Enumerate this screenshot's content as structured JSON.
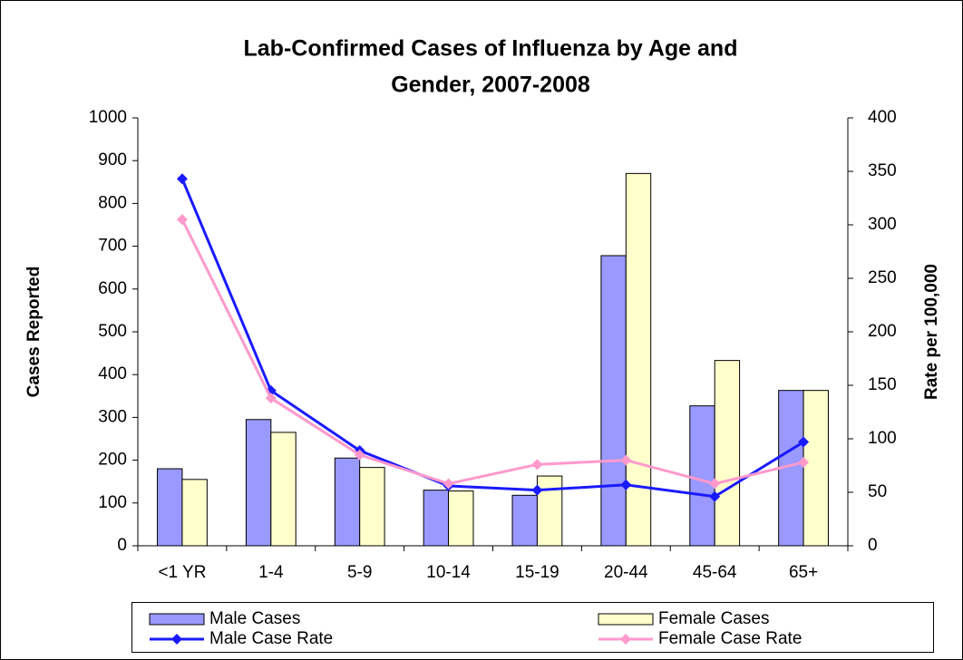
{
  "chart_data": {
    "type": "bar-line",
    "title": [
      "Lab-Confirmed Cases of Influenza by Age and",
      "Gender, 2007-2008"
    ],
    "y_label": "Cases Reported",
    "y2_label": "Rate per 100,000",
    "categories": [
      "<1 YR",
      "1-4",
      "5-9",
      "10-14",
      "15-19",
      "20-44",
      "45-64",
      "65+"
    ],
    "series": [
      {
        "name": "Male Cases",
        "type": "bar",
        "color": "#9999ff",
        "values": [
          180,
          295,
          205,
          130,
          118,
          678,
          327,
          363
        ]
      },
      {
        "name": "Female Cases",
        "type": "bar",
        "color": "#ffffcc",
        "values": [
          155,
          265,
          183,
          128,
          163,
          870,
          433,
          363
        ]
      },
      {
        "name": "Male Case Rate",
        "type": "line",
        "axis": "y2",
        "color": "#1a1aff",
        "values": [
          343,
          145,
          89,
          56,
          52,
          57,
          46,
          97
        ]
      },
      {
        "name": "Female Case Rate",
        "type": "line",
        "axis": "y2",
        "color": "#ff99cc",
        "values": [
          305,
          138,
          85,
          58,
          76,
          80,
          58,
          78
        ]
      }
    ],
    "ylim": [
      0,
      1000
    ],
    "yticks": [
      0,
      100,
      200,
      300,
      400,
      500,
      600,
      700,
      800,
      900,
      1000
    ],
    "y2lim": [
      0,
      400
    ],
    "y2ticks": [
      0,
      50,
      100,
      150,
      200,
      250,
      300,
      350,
      400
    ],
    "grid": false,
    "legend": "bottom"
  }
}
